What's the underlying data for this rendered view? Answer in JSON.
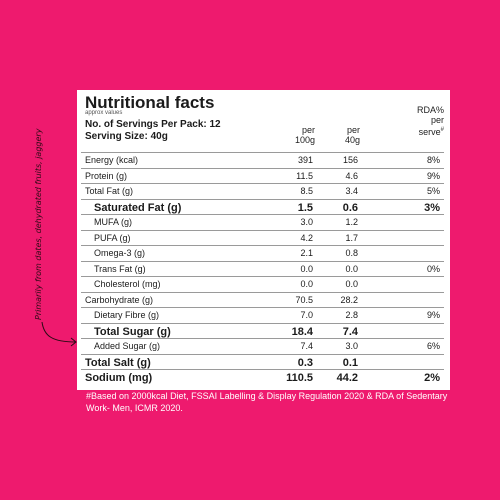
{
  "panel": {
    "title": "Nutritional facts",
    "approx": "approx values",
    "servings": "No. of Servings Per Pack: 12",
    "serving_size": "Serving Size: 40g",
    "col1": "per 100g",
    "col2": "per 40g",
    "col3": "RDA% per serve",
    "col3_mark": "#"
  },
  "rows": [
    {
      "label": "Energy (kcal)",
      "v1": "391",
      "v2": "156",
      "v3": "8%"
    },
    {
      "label": "Protein (g)",
      "v1": "11.5",
      "v2": "4.6",
      "v3": "9%"
    },
    {
      "label": "Total Fat (g)",
      "v1": "8.5",
      "v2": "3.4",
      "v3": "5%"
    },
    {
      "label": "Saturated Fat (g)",
      "v1": "1.5",
      "v2": "0.6",
      "v3": "3%"
    },
    {
      "label": "MUFA (g)",
      "v1": "3.0",
      "v2": "1.2",
      "v3": ""
    },
    {
      "label": "PUFA (g)",
      "v1": "4.2",
      "v2": "1.7",
      "v3": ""
    },
    {
      "label": "Omega-3 (g)",
      "v1": "2.1",
      "v2": "0.8",
      "v3": ""
    },
    {
      "label": "Trans Fat (g)",
      "v1": "0.0",
      "v2": "0.0",
      "v3": "0%"
    },
    {
      "label": "Cholesterol (mg)",
      "v1": "0.0",
      "v2": "0.0",
      "v3": ""
    },
    {
      "label": "Carbohydrate (g)",
      "v1": "70.5",
      "v2": "28.2",
      "v3": ""
    },
    {
      "label": "Dietary Fibre (g)",
      "v1": "7.0",
      "v2": "2.8",
      "v3": "9%"
    },
    {
      "label": "Total Sugar (g)",
      "v1": "18.4",
      "v2": "7.4",
      "v3": ""
    },
    {
      "label": "Added Sugar (g)",
      "v1": "7.4",
      "v2": "3.0",
      "v3": "6%"
    },
    {
      "label": "Total Salt (g)",
      "v1": "0.3",
      "v2": "0.1",
      "v3": ""
    },
    {
      "label": "Sodium (mg)",
      "v1": "110.5",
      "v2": "44.2",
      "v3": "2%"
    }
  ],
  "footnote": "#Based on 2000kcal Diet, FSSAI Labelling & Display Regulation 2020 & RDA of Sedentary Work- Men, ICMR 2020.",
  "side_note": "Primarily from dates, dehydrated fruits, jaggery",
  "colors": {
    "background": "#ee1a6e",
    "panel": "#ffffff",
    "text": "#1b1b1b"
  }
}
